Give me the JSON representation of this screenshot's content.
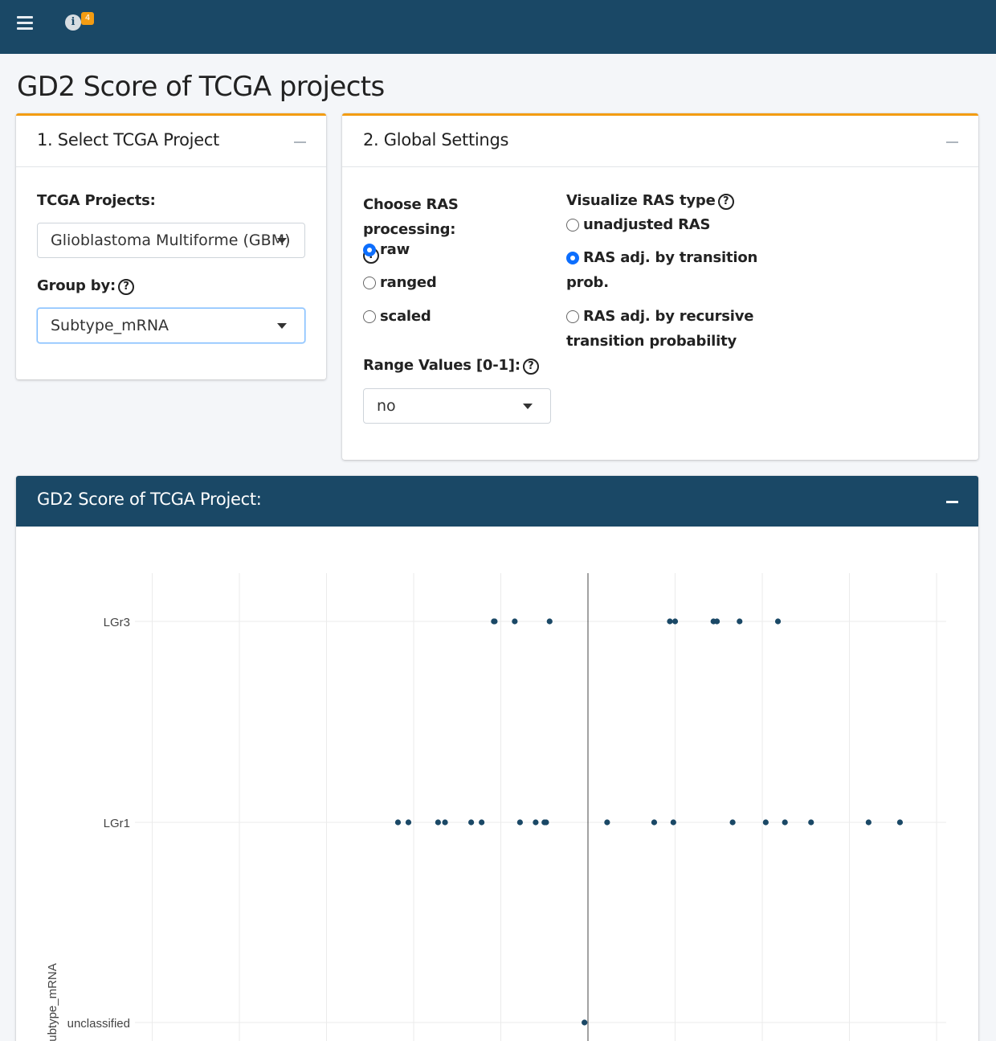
{
  "header": {
    "info_badge": "4"
  },
  "page_title": "GD2 Score of TCGA projects",
  "project_card": {
    "title": "1. Select TCGA Project",
    "projects_label": "TCGA Projects:",
    "project_value": "Glioblastoma Multiforme (GBM)",
    "group_label": "Group by:",
    "group_value": "Subtype_mRNA"
  },
  "settings_card": {
    "title": "2. Global Settings",
    "ras_processing_label": "Choose RAS processing:",
    "ras_processing_options": [
      {
        "label": "raw",
        "checked": true
      },
      {
        "label": "ranged",
        "checked": false
      },
      {
        "label": "scaled",
        "checked": false
      }
    ],
    "range_label": "Range Values [0-1]:",
    "range_value": "no",
    "ras_type_label": "Visualize RAS type",
    "ras_type_options": [
      {
        "lines": [
          "unadjusted RAS"
        ],
        "checked": false
      },
      {
        "lines": [
          "RAS adj. by transition",
          "prob."
        ],
        "checked": true
      },
      {
        "lines": [
          "RAS adj. by recursive",
          "transition probability"
        ],
        "checked": false
      }
    ]
  },
  "plot_card": {
    "title": "GD2 Score of TCGA Project:"
  },
  "colors": {
    "navbar": "#1a4866",
    "accent": "#f39c12",
    "radio": "#0d6efd",
    "point": "#1a4866"
  },
  "chart_data": {
    "type": "scatter",
    "ylabel": "Subtype_mRNA",
    "xlabel": "",
    "categories": [
      "LGr3",
      "LGr1",
      "unclassified"
    ],
    "zero_line": true,
    "grid": true,
    "series": [
      {
        "category": "LGr3",
        "x": [
          -5.4,
          -5.35,
          -4.2,
          -2.2,
          4.7,
          5.0,
          7.2,
          7.4,
          8.7,
          10.9
        ]
      },
      {
        "category": "LGr1",
        "x": [
          -10.9,
          -10.3,
          -8.6,
          -8.2,
          -6.7,
          -6.1,
          -3.9,
          -3.0,
          -2.5,
          -2.4,
          1.1,
          3.8,
          4.9,
          8.3,
          10.2,
          11.3,
          12.8,
          16.1,
          17.9
        ]
      },
      {
        "category": "unclassified",
        "x": [
          -0.2
        ]
      }
    ],
    "xlim": [
      -25,
      20
    ]
  }
}
